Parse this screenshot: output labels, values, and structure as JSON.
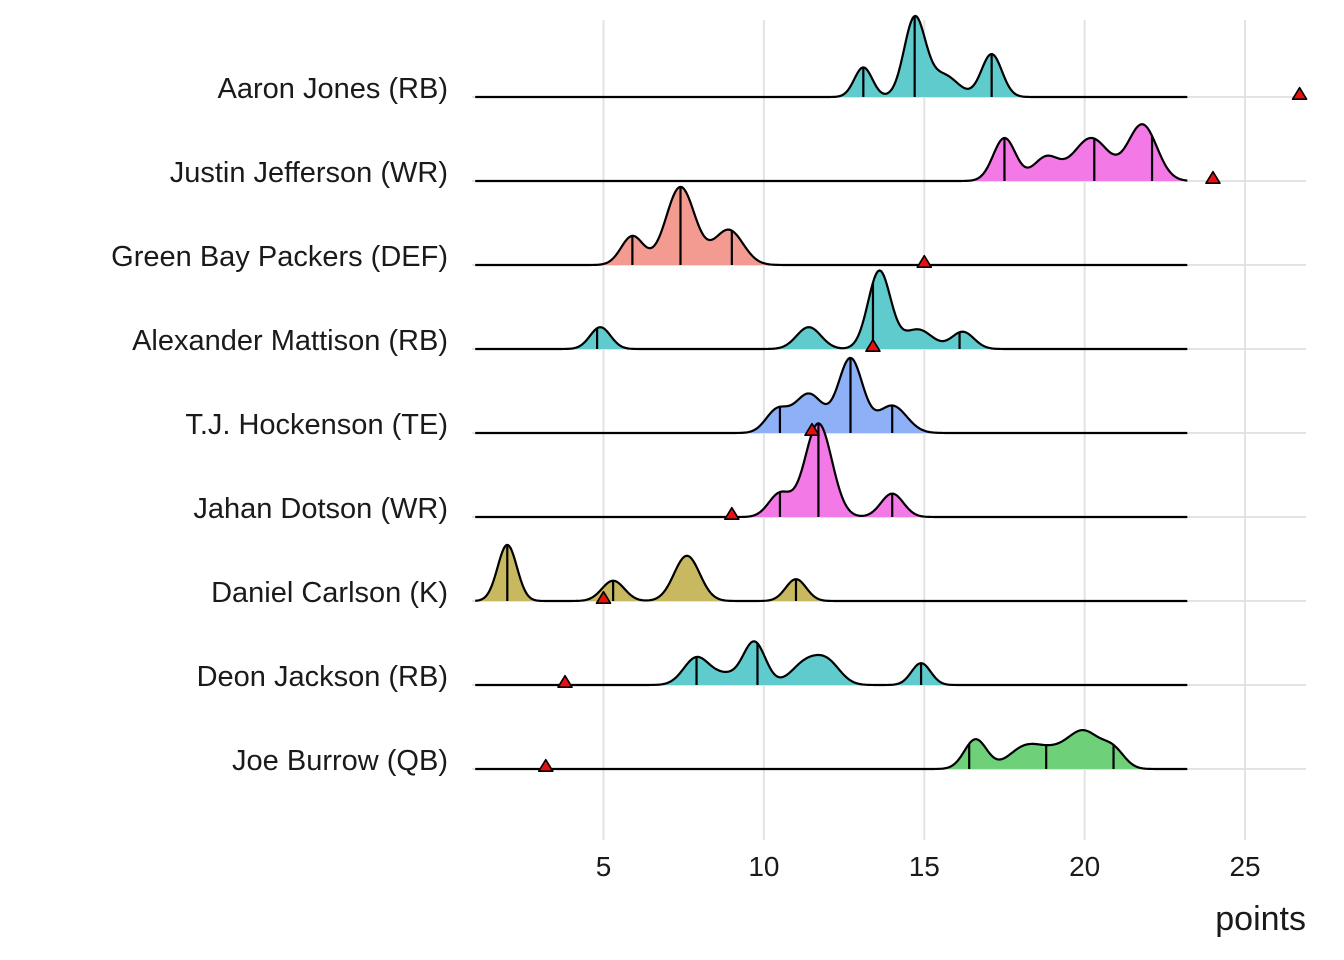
{
  "chart_data": {
    "type": "ridgeline",
    "xlabel": "points",
    "xlim": [
      0.9,
      26.9
    ],
    "xticks": [
      5,
      10,
      15,
      20,
      25
    ],
    "grid": true,
    "legend": "none",
    "marker": "red-triangle",
    "rows": [
      {
        "label": "Aaron Jones (RB)",
        "color": "#5fcbcd",
        "baseline_range": [
          1,
          23.2
        ],
        "actual": 26.7,
        "peaks": [
          [
            13.1,
            0.38,
            0.28
          ],
          [
            14.7,
            1.0,
            0.33
          ],
          [
            15.6,
            0.28,
            0.45
          ],
          [
            17.1,
            0.55,
            0.32
          ]
        ],
        "quantiles": [
          13.1,
          14.7,
          17.1
        ]
      },
      {
        "label": "Justin Jefferson (WR)",
        "color": "#f279e6",
        "baseline_range": [
          1,
          23.2
        ],
        "actual": 24,
        "peaks": [
          [
            17.5,
            0.55,
            0.35
          ],
          [
            18.8,
            0.3,
            0.4
          ],
          [
            20.2,
            0.55,
            0.55
          ],
          [
            21.8,
            0.72,
            0.45
          ]
        ],
        "quantiles": [
          17.5,
          20.3,
          22.1
        ]
      },
      {
        "label": "Green Bay Packers (DEF)",
        "color": "#f39b91",
        "baseline_range": [
          1,
          23.2
        ],
        "actual": 15,
        "peaks": [
          [
            5.9,
            0.37,
            0.35
          ],
          [
            7.4,
            1.0,
            0.45
          ],
          [
            8.9,
            0.45,
            0.45
          ]
        ],
        "quantiles": [
          5.9,
          7.4,
          9.0
        ]
      },
      {
        "label": "Alexander Mattison (RB)",
        "color": "#5fcbcd",
        "baseline_range": [
          1,
          23.2
        ],
        "actual": 13.4,
        "peaks": [
          [
            4.9,
            0.28,
            0.32
          ],
          [
            11.4,
            0.28,
            0.38
          ],
          [
            13.6,
            1.0,
            0.35
          ],
          [
            14.8,
            0.25,
            0.45
          ],
          [
            16.2,
            0.22,
            0.35
          ]
        ],
        "quantiles": [
          4.8,
          13.4,
          16.1
        ]
      },
      {
        "label": "T.J. Hockenson (TE)",
        "color": "#8eb0f7",
        "baseline_range": [
          1,
          23.2
        ],
        "actual": 11.5,
        "peaks": [
          [
            10.4,
            0.28,
            0.35
          ],
          [
            11.4,
            0.5,
            0.45
          ],
          [
            12.7,
            0.95,
            0.38
          ],
          [
            14.0,
            0.35,
            0.45
          ]
        ],
        "quantiles": [
          10.5,
          12.7,
          14.0
        ]
      },
      {
        "label": "Jahan Dotson (WR)",
        "color": "#f279e6",
        "baseline_range": [
          1,
          23.2
        ],
        "actual": 9,
        "peaks": [
          [
            10.5,
            0.3,
            0.35
          ],
          [
            11.7,
            1.2,
            0.42
          ],
          [
            14.0,
            0.3,
            0.35
          ]
        ],
        "quantiles": [
          10.5,
          11.7,
          14.0
        ]
      },
      {
        "label": "Daniel Carlson (K)",
        "color": "#c8b960",
        "baseline_range": [
          1,
          23.2
        ],
        "actual": 5,
        "peaks": [
          [
            2.0,
            0.72,
            0.3
          ],
          [
            5.3,
            0.26,
            0.35
          ],
          [
            7.6,
            0.58,
            0.4
          ],
          [
            11.0,
            0.28,
            0.32
          ]
        ],
        "quantiles": [
          2.0,
          5.3,
          11.0
        ]
      },
      {
        "label": "Deon Jackson (RB)",
        "color": "#5fcbcd",
        "baseline_range": [
          1,
          23.2
        ],
        "actual": 3.8,
        "peaks": [
          [
            7.9,
            0.35,
            0.4
          ],
          [
            8.8,
            0.12,
            0.4
          ],
          [
            9.7,
            0.55,
            0.35
          ],
          [
            11.3,
            0.28,
            0.45
          ],
          [
            12.0,
            0.26,
            0.4
          ],
          [
            14.9,
            0.28,
            0.3
          ]
        ],
        "quantiles": [
          7.9,
          9.8,
          14.9
        ]
      },
      {
        "label": "Joe Burrow (QB)",
        "color": "#6fd07a",
        "baseline_range": [
          1,
          23.2
        ],
        "actual": 3.2,
        "peaks": [
          [
            16.6,
            0.38,
            0.35
          ],
          [
            18.1,
            0.25,
            0.5
          ],
          [
            19.0,
            0.2,
            0.55
          ],
          [
            20.0,
            0.45,
            0.5
          ],
          [
            20.9,
            0.22,
            0.35
          ]
        ],
        "quantiles": [
          16.4,
          18.8,
          20.9
        ]
      }
    ]
  }
}
